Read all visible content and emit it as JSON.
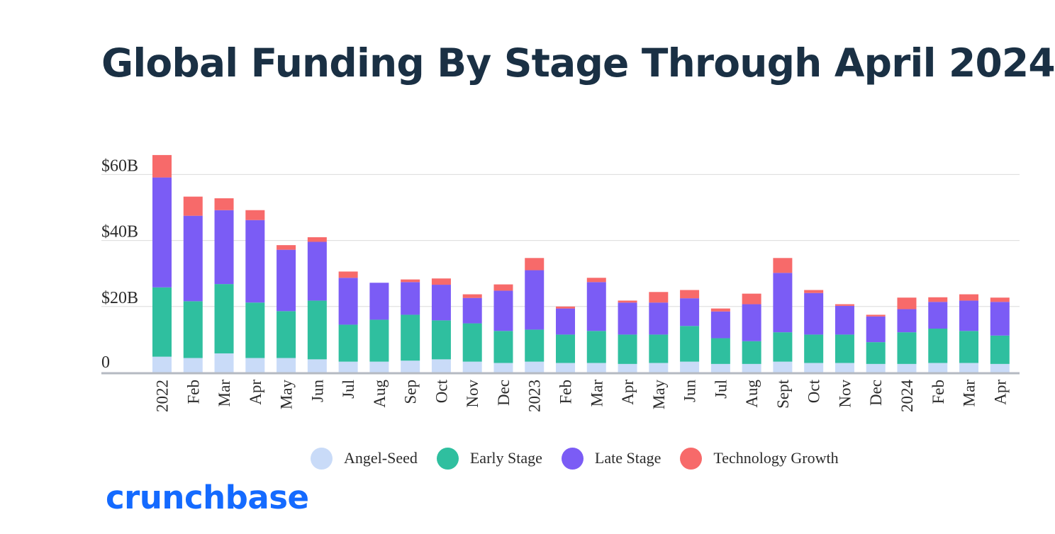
{
  "title": "Global Funding By Stage Through April 2024",
  "logo": "crunchbase",
  "colors": {
    "angel_seed": "#c9dbf8",
    "early_stage": "#2fbf9f",
    "late_stage": "#7b5cf5",
    "technology_growth": "#f76a6a",
    "grid": "#dcdcdc",
    "axis": "#b5bac2"
  },
  "chart_data": {
    "type": "bar",
    "stacked": true,
    "title": "Global Funding By Stage Through April 2024",
    "categories": [
      "2022",
      "Feb",
      "Mar",
      "Apr",
      "May",
      "Jun",
      "Jul",
      "Aug",
      "Sep",
      "Oct",
      "Nov",
      "Dec",
      "2023",
      "Feb",
      "Mar",
      "Apr",
      "May",
      "Jun",
      "Jul",
      "Aug",
      "Sept",
      "Oct",
      "Nov",
      "Dec",
      "2024",
      "Feb",
      "Mar",
      "Apr"
    ],
    "y_ticks": [
      {
        "value": 0,
        "label": "0"
      },
      {
        "value": 20,
        "label": "$20B"
      },
      {
        "value": 40,
        "label": "$40B"
      },
      {
        "value": 60,
        "label": "$60B"
      }
    ],
    "ylim": [
      0,
      66
    ],
    "grid": true,
    "legend_position": "bottom",
    "series": [
      {
        "name": "Angel-Seed",
        "values": [
          4.8,
          4.4,
          5.8,
          4.4,
          4.4,
          4.0,
          3.3,
          3.3,
          3.6,
          4.0,
          3.3,
          2.9,
          3.3,
          2.9,
          2.9,
          2.6,
          2.9,
          3.3,
          2.6,
          2.6,
          3.3,
          2.9,
          2.9,
          2.6,
          2.6,
          2.9,
          2.9,
          2.6
        ]
      },
      {
        "name": "Early Stage",
        "values": [
          21.0,
          17.2,
          21.0,
          16.8,
          14.2,
          17.8,
          11.2,
          12.7,
          13.9,
          11.8,
          11.6,
          9.7,
          9.7,
          8.6,
          9.7,
          8.9,
          8.6,
          10.8,
          7.8,
          6.9,
          8.9,
          8.6,
          8.6,
          6.6,
          9.6,
          10.4,
          9.7,
          8.6
        ]
      },
      {
        "name": "Late Stage",
        "values": [
          33.3,
          25.9,
          22.4,
          25.0,
          18.6,
          17.8,
          14.2,
          11.2,
          9.9,
          10.8,
          7.7,
          12.2,
          18.0,
          7.9,
          14.8,
          9.7,
          9.7,
          8.4,
          8.1,
          11.2,
          18.0,
          12.6,
          8.7,
          7.8,
          7.0,
          8.1,
          9.2,
          10.2
        ]
      },
      {
        "name": "Technology Growth",
        "values": [
          6.8,
          5.8,
          3.6,
          3.0,
          1.4,
          1.4,
          1.9,
          0.0,
          0.8,
          1.9,
          1.1,
          1.9,
          3.7,
          0.6,
          1.3,
          0.6,
          3.2,
          2.5,
          0.9,
          3.2,
          4.5,
          0.9,
          0.5,
          0.5,
          3.5,
          1.4,
          1.9,
          1.3
        ]
      }
    ]
  }
}
